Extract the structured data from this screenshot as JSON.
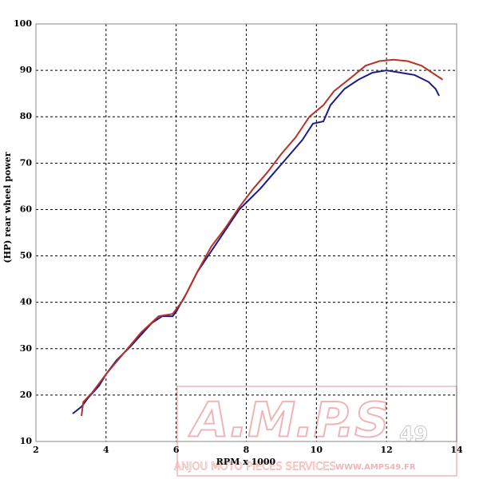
{
  "chart_data": {
    "type": "line",
    "xlabel": "RPM x 1000",
    "ylabel": "(HP) rear wheel power",
    "xlim": [
      2,
      14
    ],
    "xticks": [
      2,
      4,
      6,
      8,
      10,
      12,
      14
    ],
    "ylim": [
      10,
      100
    ],
    "yticks": [
      10,
      20,
      30,
      40,
      50,
      60,
      70,
      80,
      90,
      100
    ],
    "grid": true,
    "series": [
      {
        "color": "#1c1c8a",
        "x": [
          3.05,
          3.3,
          3.5,
          3.8,
          4,
          4.3,
          4.7,
          5,
          5.3,
          5.6,
          5.9,
          6,
          6.3,
          6.6,
          7,
          7.4,
          7.8,
          8,
          8.4,
          8.8,
          9.2,
          9.6,
          9.9,
          10.2,
          10.4,
          10.8,
          11.2,
          11.6,
          12,
          12.4,
          12.8,
          13.2,
          13.4,
          13.5
        ],
        "values": [
          16,
          17.5,
          19.5,
          22,
          24.5,
          27.5,
          30.5,
          33,
          35.5,
          37,
          37,
          38,
          42,
          46.5,
          51,
          55.5,
          60,
          61.5,
          64.5,
          68,
          71.5,
          75,
          78.5,
          79,
          82.5,
          86,
          88,
          89.5,
          90,
          89.5,
          89,
          87.5,
          86,
          84.5
        ]
      },
      {
        "color": "#b8322a",
        "x": [
          3.3,
          3.35,
          3.6,
          4,
          4.5,
          5,
          5.5,
          5.9,
          6.2,
          6.6,
          7,
          7.4,
          7.8,
          8.2,
          8.6,
          9,
          9.4,
          9.8,
          10.2,
          10.5,
          11,
          11.4,
          11.8,
          12.2,
          12.6,
          13,
          13.3,
          13.6
        ],
        "values": [
          15.5,
          18.5,
          20.5,
          24.5,
          29,
          33.5,
          37,
          37.5,
          40.5,
          46.5,
          52,
          56,
          60.5,
          64.5,
          68,
          72,
          75.5,
          80,
          82.5,
          85.5,
          88.5,
          91,
          92,
          92.3,
          92,
          91,
          89.5,
          88
        ]
      }
    ],
    "watermark": {
      "logo": "A.M.P.S",
      "number": "49",
      "tagline": "ANJOU MOTO PIECES SERVICES",
      "url": "WWW.AMPS49.FR"
    }
  }
}
